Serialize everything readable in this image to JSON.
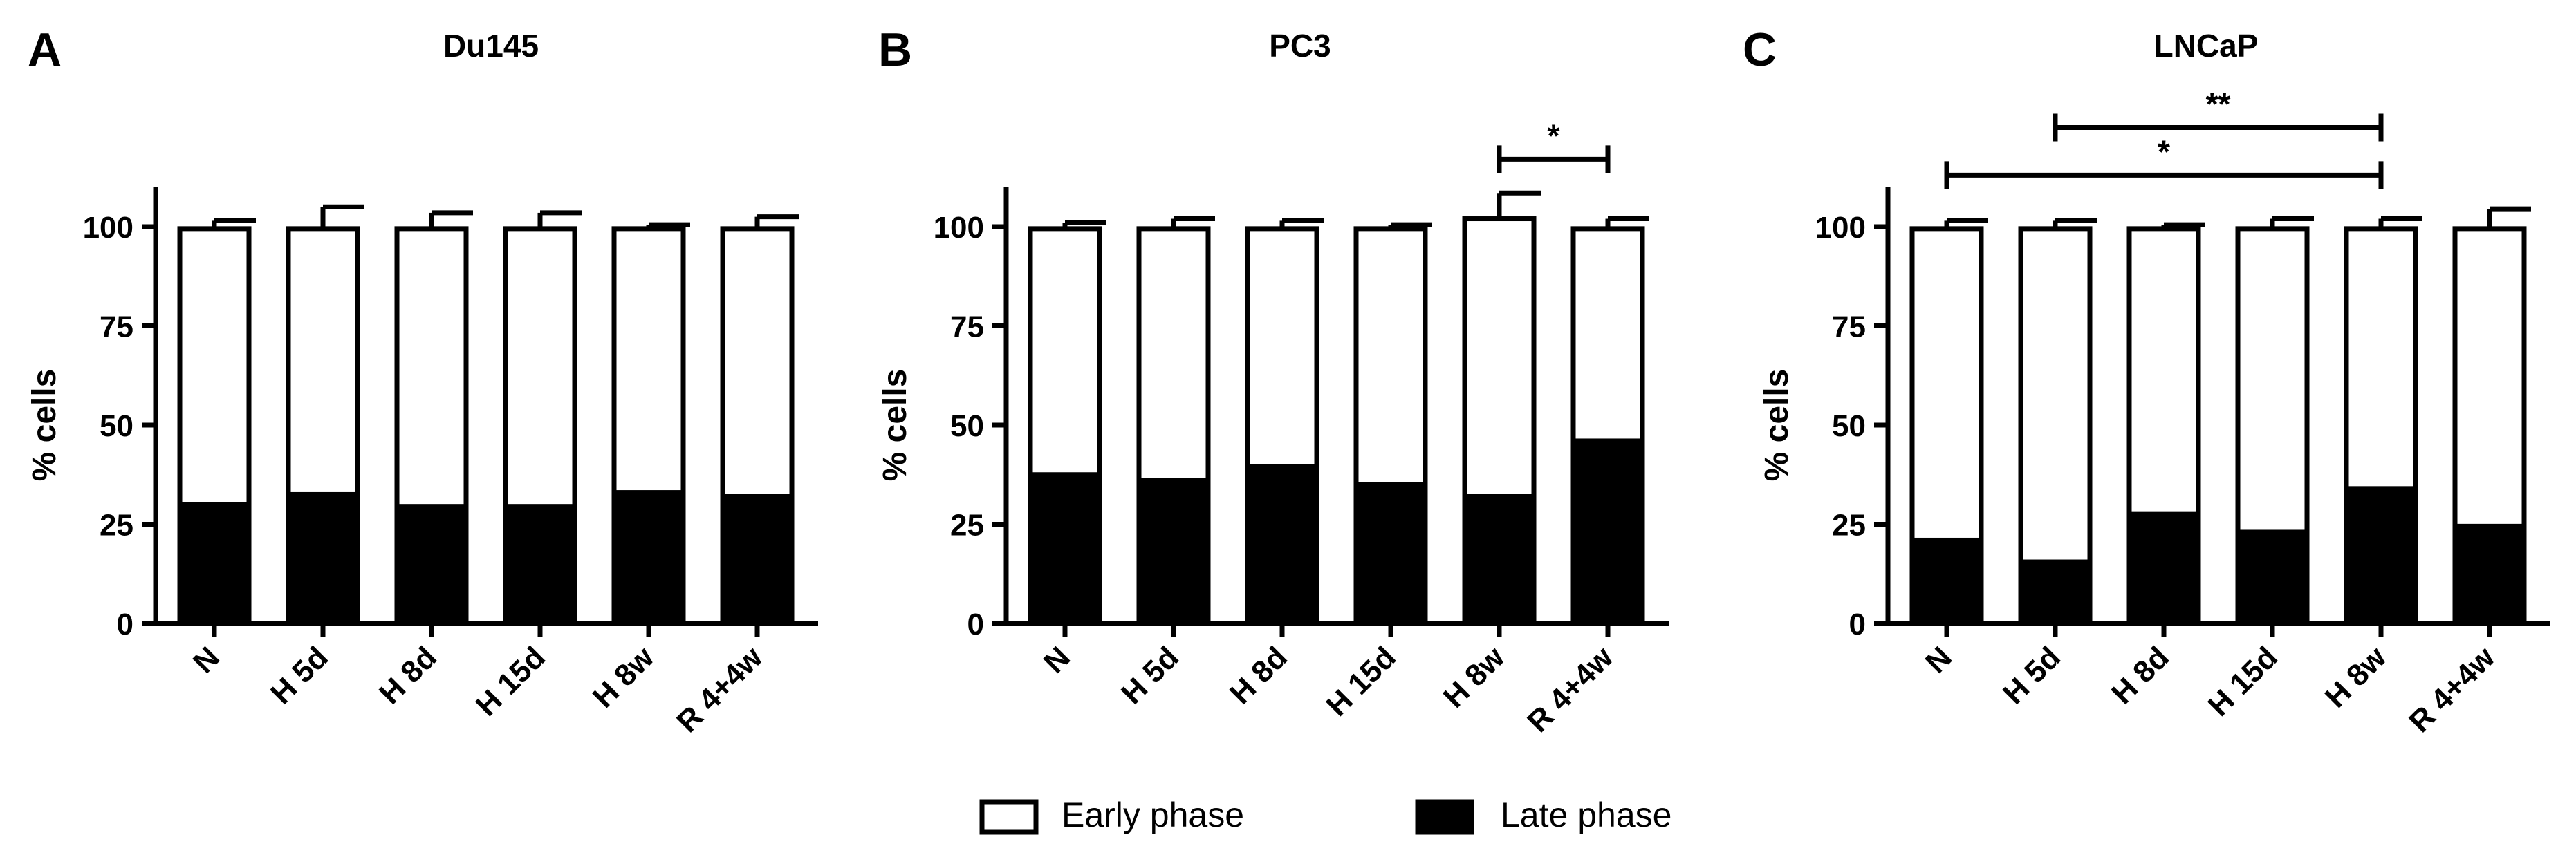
{
  "chart_data": [
    {
      "type": "bar",
      "stacked": true,
      "panel_letter": "A",
      "title": "Du145",
      "ylabel": "% cells",
      "xlabel": "",
      "ylim": [
        0,
        110
      ],
      "yticks": [
        "0",
        "25",
        "50",
        "75",
        "100"
      ],
      "categories": [
        "N",
        "H 5d",
        "H 8d",
        "H 15d",
        "H 8w",
        "R 4+4w"
      ],
      "series": [
        {
          "name": "Late phase",
          "values": [
            30,
            32.5,
            29.5,
            29.5,
            33,
            32
          ]
        },
        {
          "name": "Early phase",
          "values": [
            69.5,
            67,
            70,
            70,
            66.5,
            67.5
          ]
        }
      ],
      "error_top": [
        101.5,
        105,
        103.5,
        103.5,
        100.5,
        102.5
      ],
      "significance": []
    },
    {
      "type": "bar",
      "stacked": true,
      "panel_letter": "B",
      "title": "PC3",
      "ylabel": "% cells",
      "xlabel": "",
      "ylim": [
        0,
        110
      ],
      "yticks": [
        "0",
        "25",
        "50",
        "75",
        "100"
      ],
      "categories": [
        "N",
        "H 5d",
        "H 8d",
        "H 15d",
        "H 8w",
        "R 4+4w"
      ],
      "series": [
        {
          "name": "Late phase",
          "values": [
            37.5,
            36,
            39.5,
            35,
            32,
            46
          ]
        },
        {
          "name": "Early phase",
          "values": [
            62,
            63.5,
            60,
            64.5,
            70,
            53.5
          ]
        }
      ],
      "error_top": [
        101,
        102,
        101.5,
        100.5,
        108.5,
        102
      ],
      "significance": [
        {
          "from": 4,
          "to": 5,
          "label": "*",
          "y": 117
        }
      ]
    },
    {
      "type": "bar",
      "stacked": true,
      "panel_letter": "C",
      "title": "LNCaP",
      "ylabel": "% cells",
      "xlabel": "",
      "ylim": [
        0,
        110
      ],
      "yticks": [
        "0",
        "25",
        "50",
        "75",
        "100"
      ],
      "categories": [
        "N",
        "H 5d",
        "H 8d",
        "H 15d",
        "H 8w",
        "R 4+4w"
      ],
      "series": [
        {
          "name": "Late phase",
          "values": [
            21,
            15.5,
            27.5,
            23,
            34,
            24.5
          ]
        },
        {
          "name": "Early phase",
          "values": [
            78.5,
            84,
            72,
            76.5,
            65.5,
            75
          ]
        }
      ],
      "error_top": [
        101.5,
        101.5,
        100.5,
        102,
        102,
        104.5
      ],
      "significance": [
        {
          "from": 1,
          "to": 4,
          "label": "**",
          "y": 125
        },
        {
          "from": 0,
          "to": 4,
          "label": "*",
          "y": 113
        }
      ]
    }
  ],
  "legend": {
    "position": "bottom-center",
    "items": [
      {
        "label": "Early phase",
        "swatch": "#ffffff"
      },
      {
        "label": "Late phase",
        "swatch": "#000000"
      }
    ]
  },
  "colors": {
    "late": "#000000",
    "early": "#ffffff",
    "outline": "#000000"
  }
}
